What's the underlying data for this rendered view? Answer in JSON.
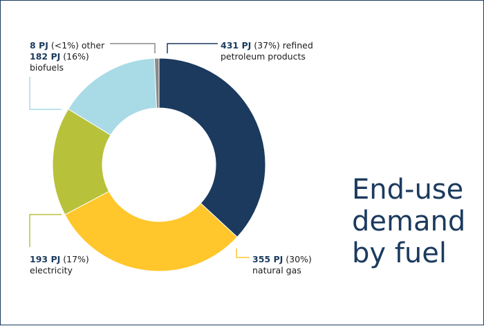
{
  "title_lines": [
    "End-use",
    "demand",
    "by fuel"
  ],
  "chart_data": {
    "type": "pie",
    "title": "End-use demand by fuel",
    "unit": "PJ",
    "slices": [
      {
        "name": "refined petroleum products",
        "value": 431,
        "value_label": "431 PJ",
        "pct_label": "(37%)",
        "label_part1": "refined",
        "label_part2": "petroleum products",
        "color": "#1b3a5e"
      },
      {
        "name": "natural gas",
        "value": 355,
        "value_label": "355 PJ",
        "pct_label": "(30%)",
        "color": "#ffc72c"
      },
      {
        "name": "electricity",
        "value": 193,
        "value_label": "193 PJ",
        "pct_label": "(17%)",
        "color": "#b8c13a"
      },
      {
        "name": "biofuels",
        "value": 182,
        "value_label": "182 PJ",
        "pct_label": "(16%)",
        "color": "#a8dbe6"
      },
      {
        "name": "other",
        "value": 8,
        "value_label": "8 PJ",
        "pct_label": "(<1%)",
        "color": "#8a8a8a"
      }
    ],
    "start": "12 o'clock",
    "direction": "clockwise",
    "legend": "none"
  }
}
